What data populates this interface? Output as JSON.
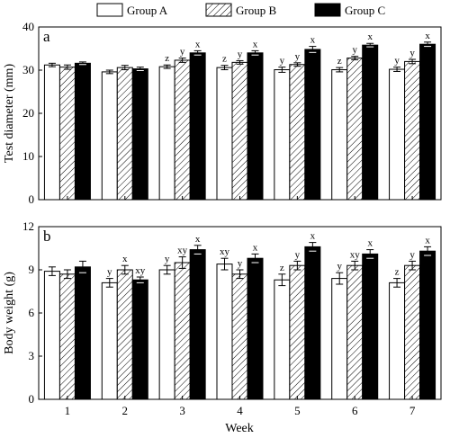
{
  "legend": [
    "Group A",
    "Group B",
    "Group C"
  ],
  "colors": {
    "group_a": "#ffffff",
    "group_c": "#000000",
    "stroke": "#000000"
  },
  "x_axis_title": "Week",
  "chart_data": [
    {
      "type": "bar",
      "panel_label": "a",
      "categories": [
        "1",
        "2",
        "3",
        "4",
        "5",
        "6",
        "7"
      ],
      "ylabel": "Test diameter (mm)",
      "ylim": [
        0,
        40
      ],
      "yticks": [
        "0",
        "10",
        "20",
        "30",
        "40"
      ],
      "series": [
        {
          "name": "Group A",
          "values": [
            31.2,
            29.6,
            30.8,
            30.6,
            30.1,
            30.1,
            30.2
          ],
          "errors": [
            0.4,
            0.4,
            0.4,
            0.5,
            0.6,
            0.5,
            0.5
          ]
        },
        {
          "name": "Group B",
          "values": [
            30.7,
            30.6,
            32.3,
            31.8,
            31.3,
            32.8,
            32.0
          ],
          "errors": [
            0.5,
            0.5,
            0.5,
            0.4,
            0.4,
            0.4,
            0.5
          ]
        },
        {
          "name": "Group C",
          "values": [
            31.6,
            30.3,
            34.0,
            34.0,
            34.8,
            35.8,
            36.0
          ],
          "errors": [
            0.3,
            0.4,
            0.5,
            0.5,
            0.7,
            0.4,
            0.5
          ]
        }
      ],
      "significance": [
        [
          "",
          "",
          ""
        ],
        [
          "",
          "",
          ""
        ],
        [
          "z",
          "y",
          "x"
        ],
        [
          "z",
          "y",
          "x"
        ],
        [
          "y",
          "y",
          "x"
        ],
        [
          "z",
          "y",
          "x"
        ],
        [
          "y",
          "y",
          "x"
        ]
      ]
    },
    {
      "type": "bar",
      "panel_label": "b",
      "categories": [
        "1",
        "2",
        "3",
        "4",
        "5",
        "6",
        "7"
      ],
      "ylabel": "Body weight (g)",
      "ylim": [
        0,
        12
      ],
      "yticks": [
        "0",
        "3",
        "6",
        "9",
        "12"
      ],
      "series": [
        {
          "name": "Group A",
          "values": [
            8.9,
            8.1,
            9.0,
            9.4,
            8.3,
            8.4,
            8.1
          ],
          "errors": [
            0.3,
            0.3,
            0.3,
            0.4,
            0.4,
            0.4,
            0.3
          ]
        },
        {
          "name": "Group B",
          "values": [
            8.7,
            9.0,
            9.5,
            8.7,
            9.3,
            9.3,
            9.3
          ],
          "errors": [
            0.3,
            0.3,
            0.4,
            0.3,
            0.3,
            0.3,
            0.3
          ]
        },
        {
          "name": "Group C",
          "values": [
            9.2,
            8.3,
            10.4,
            9.8,
            10.6,
            10.1,
            10.3
          ],
          "errors": [
            0.4,
            0.2,
            0.3,
            0.3,
            0.3,
            0.3,
            0.3
          ]
        }
      ],
      "significance": [
        [
          "",
          "",
          ""
        ],
        [
          "y",
          "x",
          "xy"
        ],
        [
          "y",
          "xy",
          "x"
        ],
        [
          "xy",
          "y",
          "x"
        ],
        [
          "z",
          "y",
          "x"
        ],
        [
          "y",
          "xy",
          "x"
        ],
        [
          "z",
          "y",
          "x"
        ]
      ]
    }
  ]
}
